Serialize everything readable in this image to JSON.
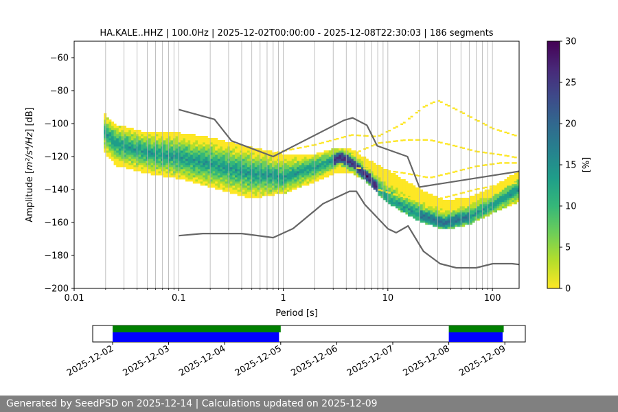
{
  "chart_data": {
    "type": "heatmap",
    "title": "HA.KALE..HHZ | 100.0Hz | 2025-12-02T00:00:00 - 2025-12-08T22:30:03 | 186 segments",
    "xlabel": "Period [s]",
    "ylabel_prefix": "Amplitude [",
    "ylabel_math": "m²/s⁴/Hz",
    "ylabel_suffix": "] [dB]",
    "xscale": "log",
    "xlim": [
      0.01,
      180
    ],
    "ylim": [
      -200,
      -50
    ],
    "xticks": [
      0.01,
      0.1,
      1,
      10,
      100
    ],
    "xtick_labels": [
      "0.01",
      "0.1",
      "1",
      "10",
      "100"
    ],
    "yticks": [
      -60,
      -80,
      -100,
      -120,
      -140,
      -160,
      -180,
      -200
    ],
    "ytick_labels": [
      "−60",
      "−80",
      "−100",
      "−120",
      "−140",
      "−160",
      "−180",
      "−200"
    ],
    "grid": "vertical log lines",
    "colorbar": {
      "label": "[%]",
      "colormap": [
        "#fde725",
        "#b5de2b",
        "#6ece58",
        "#35b779",
        "#1f9e89",
        "#26828e",
        "#31688e",
        "#3e4989",
        "#482878",
        "#440154"
      ],
      "range": [
        0,
        30
      ],
      "ticks": [
        0,
        5,
        10,
        15,
        20,
        25,
        30
      ],
      "tick_labels": [
        "0",
        "5",
        "10",
        "15",
        "20",
        "25",
        "30"
      ]
    },
    "noise_models": [
      {
        "name": "NHNM",
        "color": "#666666",
        "x": [
          0.1,
          0.22,
          0.32,
          0.8,
          3.8,
          4.6,
          6.3,
          7.9,
          15.4,
          20,
          354.8
        ],
        "y": [
          -91.5,
          -97.4,
          -110.5,
          -120,
          -98,
          -96.5,
          -101,
          -113.5,
          -120,
          -138.5,
          -126
        ]
      },
      {
        "name": "NLNM",
        "color": "#666666",
        "x": [
          0.1,
          0.17,
          0.4,
          0.8,
          1.24,
          2.4,
          4.3,
          5,
          6,
          10,
          12,
          15.6,
          21.9,
          31.6,
          45,
          70,
          101,
          154,
          180
        ],
        "y": [
          -168,
          -166.7,
          -166.7,
          -169.2,
          -163.7,
          -148.6,
          -141.1,
          -141.1,
          -149,
          -163.8,
          -166.2,
          -162.1,
          -177.5,
          -185,
          -187.5,
          -187.5,
          -185,
          -185,
          -185.5
        ]
      }
    ],
    "psd_bands": [
      {
        "x": [
          0.019,
          0.025,
          0.05,
          0.1,
          0.2,
          0.5,
          1,
          2,
          3.5,
          4.5,
          6,
          10,
          20,
          35,
          60,
          100,
          180
        ],
        "lo": [
          -117,
          -126,
          -131,
          -134,
          -139,
          -146,
          -143,
          -136,
          -130,
          -131,
          -135,
          -149,
          -160,
          -165,
          -162,
          -155,
          -148
        ],
        "hi": [
          -94,
          -101,
          -106,
          -106,
          -109,
          -115,
          -119,
          -119,
          -115,
          -116,
          -121,
          -129,
          -140,
          -147,
          -145,
          -139,
          -129
        ],
        "core": [
          -105,
          -113,
          -118,
          -121,
          -125,
          -131,
          -133,
          -127,
          -121,
          -124,
          -131,
          -146,
          -156,
          -161,
          -157,
          -150,
          -140
        ]
      }
    ],
    "outlier_curves": [
      {
        "x": [
          0.8,
          2,
          4.5,
          8,
          14,
          22,
          30,
          50,
          100,
          180
        ],
        "y": [
          -118,
          -113,
          -107,
          -108,
          -100,
          -90,
          -86,
          -93,
          -103,
          -108
        ]
      },
      {
        "x": [
          4.5,
          8,
          15,
          25,
          40,
          70,
          120,
          180
        ],
        "y": [
          -119,
          -112,
          -110,
          -110,
          -113,
          -117,
          -119,
          -121
        ]
      },
      {
        "x": [
          5,
          8,
          14,
          25,
          40,
          70,
          120,
          180
        ],
        "y": [
          -127,
          -128,
          -130,
          -133,
          -130,
          -126,
          -124,
          -124
        ]
      },
      {
        "x": [
          8,
          15,
          25,
          40,
          70,
          120,
          180
        ],
        "y": [
          -140,
          -145,
          -147,
          -144,
          -140,
          -137,
          -136
        ]
      }
    ],
    "availability": {
      "x_dates": [
        "2025-12-02",
        "2025-12-03",
        "2025-12-04",
        "2025-12-05",
        "2025-12-06",
        "2025-12-07",
        "2025-12-08",
        "2025-12-09"
      ],
      "green_segments_days": [
        [
          0,
          3.0
        ],
        [
          6.0,
          6.98
        ]
      ],
      "blue_segments_days": [
        [
          0,
          2.97
        ],
        [
          6.0,
          6.96
        ]
      ]
    }
  },
  "footer_text": "Generated by SeedPSD on 2025-12-14 | Calculations updated on 2025-12-09"
}
